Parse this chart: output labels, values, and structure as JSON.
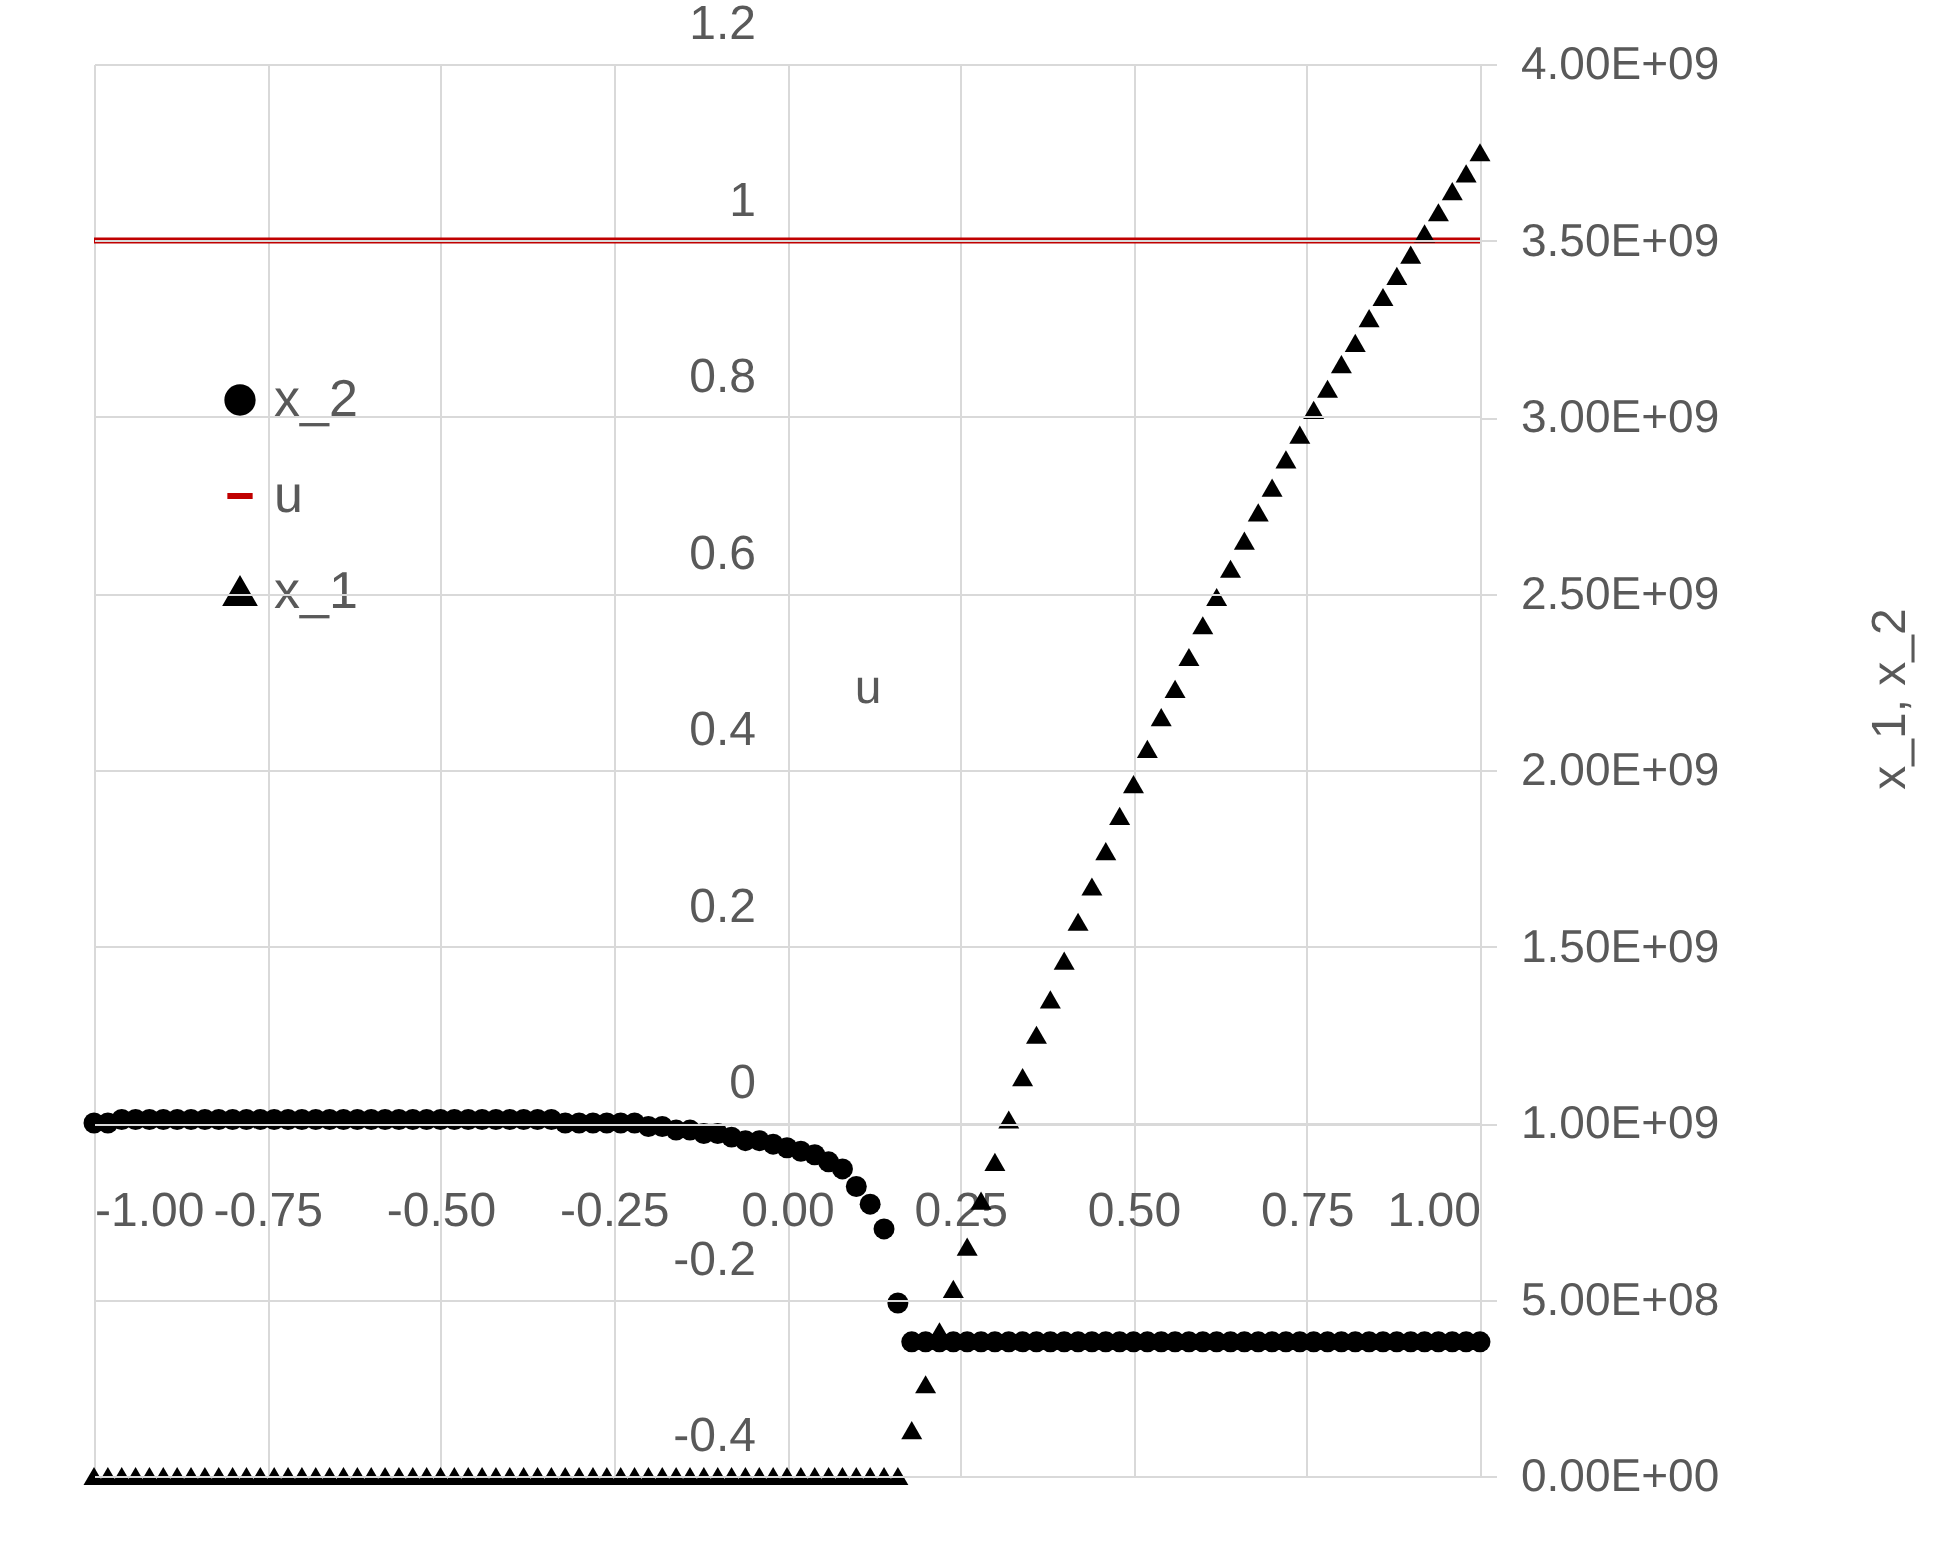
{
  "chart_data": {
    "type": "scatter",
    "x": [
      -1.0,
      -0.98,
      -0.96,
      -0.94,
      -0.92,
      -0.9,
      -0.88,
      -0.86,
      -0.84,
      -0.82,
      -0.8,
      -0.78,
      -0.76,
      -0.74,
      -0.72,
      -0.7,
      -0.68,
      -0.66,
      -0.64,
      -0.62,
      -0.6,
      -0.58,
      -0.56,
      -0.54,
      -0.52,
      -0.5,
      -0.48,
      -0.46,
      -0.44,
      -0.42,
      -0.4,
      -0.38,
      -0.36,
      -0.34,
      -0.32,
      -0.3,
      -0.28,
      -0.26,
      -0.24,
      -0.22,
      -0.2,
      -0.18,
      -0.16,
      -0.14,
      -0.12,
      -0.1,
      -0.08,
      -0.06,
      -0.04,
      -0.02,
      0.0,
      0.02,
      0.04,
      0.06,
      0.08,
      0.1,
      0.12,
      0.14,
      0.16,
      0.18,
      0.2,
      0.22,
      0.24,
      0.26,
      0.28,
      0.3,
      0.32,
      0.34,
      0.36,
      0.38,
      0.4,
      0.42,
      0.44,
      0.46,
      0.48,
      0.5,
      0.52,
      0.54,
      0.56,
      0.58,
      0.6,
      0.62,
      0.64,
      0.66,
      0.68,
      0.7,
      0.72,
      0.74,
      0.76,
      0.78,
      0.8,
      0.82,
      0.84,
      0.86,
      0.88,
      0.9,
      0.92,
      0.94,
      0.96,
      0.98,
      1.0
    ],
    "series": [
      {
        "name": "x_2",
        "color": "#000000",
        "marker": "circle",
        "axis": "y2",
        "values": [
          1000000000.0,
          1000000000.0,
          1010000000.0,
          1010000000.0,
          1010000000.0,
          1010000000.0,
          1010000000.0,
          1010000000.0,
          1010000000.0,
          1010000000.0,
          1010000000.0,
          1010000000.0,
          1010000000.0,
          1010000000.0,
          1010000000.0,
          1010000000.0,
          1010000000.0,
          1010000000.0,
          1010000000.0,
          1010000000.0,
          1010000000.0,
          1010000000.0,
          1010000000.0,
          1010000000.0,
          1010000000.0,
          1010000000.0,
          1010000000.0,
          1010000000.0,
          1010000000.0,
          1010000000.0,
          1010000000.0,
          1010000000.0,
          1010000000.0,
          1010000000.0,
          1000000000.0,
          1000000000.0,
          1000000000.0,
          1000000000.0,
          1000000000.0,
          1000000000.0,
          990000000.0,
          990000000.0,
          980000000.0,
          980000000.0,
          970000000.0,
          970000000.0,
          960000000.0,
          950000000.0,
          950000000.0,
          940000000.0,
          930000000.0,
          920000000.0,
          910000000.0,
          890000000.0,
          870000000.0,
          820000000.0,
          770000000.0,
          700000000.0,
          490000000.0,
          380000000.0,
          380000000.0,
          380000000.0,
          380000000.0,
          380000000.0,
          380000000.0,
          380000000.0,
          380000000.0,
          380000000.0,
          380000000.0,
          380000000.0,
          380000000.0,
          380000000.0,
          380000000.0,
          380000000.0,
          380000000.0,
          380000000.0,
          380000000.0,
          380000000.0,
          380000000.0,
          380000000.0,
          380000000.0,
          380000000.0,
          380000000.0,
          380000000.0,
          380000000.0,
          380000000.0,
          380000000.0,
          380000000.0,
          380000000.0,
          380000000.0,
          380000000.0,
          380000000.0,
          380000000.0,
          380000000.0,
          380000000.0,
          380000000.0,
          380000000.0,
          380000000.0,
          380000000.0,
          380000000.0,
          380000000.0
        ]
      },
      {
        "name": "u",
        "color": "#c00000",
        "type": "line",
        "marker": "none",
        "x": [
          -1.0,
          1.0
        ],
        "values": [
          1,
          1
        ]
      },
      {
        "name": "x_1",
        "color": "#000000",
        "marker": "triangle",
        "axis": "y2",
        "values": [
          0,
          0,
          0,
          0,
          0,
          0,
          0,
          0,
          0,
          0,
          0,
          0,
          0,
          0,
          0,
          0,
          0,
          0,
          0,
          0,
          0,
          0,
          0,
          0,
          0,
          0,
          0,
          0,
          0,
          0,
          0,
          0,
          0,
          0,
          0,
          0,
          0,
          0,
          0,
          0,
          0,
          0,
          0,
          0,
          0,
          0,
          0,
          0,
          0,
          0,
          0,
          0,
          0,
          0,
          0,
          0,
          0,
          0,
          0,
          130000000.0,
          260000000.0,
          410000000.0,
          530000000.0,
          650000000.0,
          780000000.0,
          890000000.0,
          1010000000.0,
          1130000000.0,
          1250000000.0,
          1350000000.0,
          1460000000.0,
          1570000000.0,
          1670000000.0,
          1770000000.0,
          1870000000.0,
          1960000000.0,
          2060000000.0,
          2150000000.0,
          2230000000.0,
          2320000000.0,
          2410000000.0,
          2490000000.0,
          2570000000.0,
          2650000000.0,
          2730000000.0,
          2800000000.0,
          2880000000.0,
          2950000000.0,
          3020000000.0,
          3080000000.0,
          3150000000.0,
          3210000000.0,
          3280000000.0,
          3340000000.0,
          3400000000.0,
          3460000000.0,
          3520000000.0,
          3580000000.0,
          3640000000.0,
          3690000000.0,
          3750000000.0
        ]
      }
    ],
    "ylabel": "u",
    "y2label": "x_1,   x_2",
    "xlim": [
      -1.0,
      1.0
    ],
    "xticks": [
      {
        "value": -1.0,
        "label": "-1.00"
      },
      {
        "value": -0.75,
        "label": "-0.75"
      },
      {
        "value": -0.5,
        "label": "-0.50"
      },
      {
        "value": -0.25,
        "label": "-0.25"
      },
      {
        "value": 0,
        "label": "0.00"
      },
      {
        "value": 0.25,
        "label": "0.25"
      },
      {
        "value": 0.5,
        "label": "0.50"
      },
      {
        "value": 0.75,
        "label": "0.75"
      },
      {
        "value": 1.0,
        "label": "1.00"
      }
    ],
    "ylim": [
      -0.4,
      1.2
    ],
    "yticks": [
      -0.4,
      -0.2,
      0,
      0.2,
      0.4,
      0.6,
      0.8,
      1,
      1.2
    ],
    "y2lim": [
      0,
      4000000000.0
    ],
    "y2ticks": [
      {
        "value": 0,
        "label": "0.00E+00"
      },
      {
        "value": 500000000.0,
        "label": "5.00E+08"
      },
      {
        "value": 1000000000.0,
        "label": "1.00E+09"
      },
      {
        "value": 1500000000.0,
        "label": "1.50E+09"
      },
      {
        "value": 2000000000.0,
        "label": "2.00E+09"
      },
      {
        "value": 2500000000.0,
        "label": "2.50E+09"
      },
      {
        "value": 3000000000.0,
        "label": "3.00E+09"
      },
      {
        "value": 3500000000.0,
        "label": "3.50E+09"
      },
      {
        "value": 4000000000.0,
        "label": "4.00E+09"
      }
    ],
    "grid": true,
    "legend": "left"
  }
}
